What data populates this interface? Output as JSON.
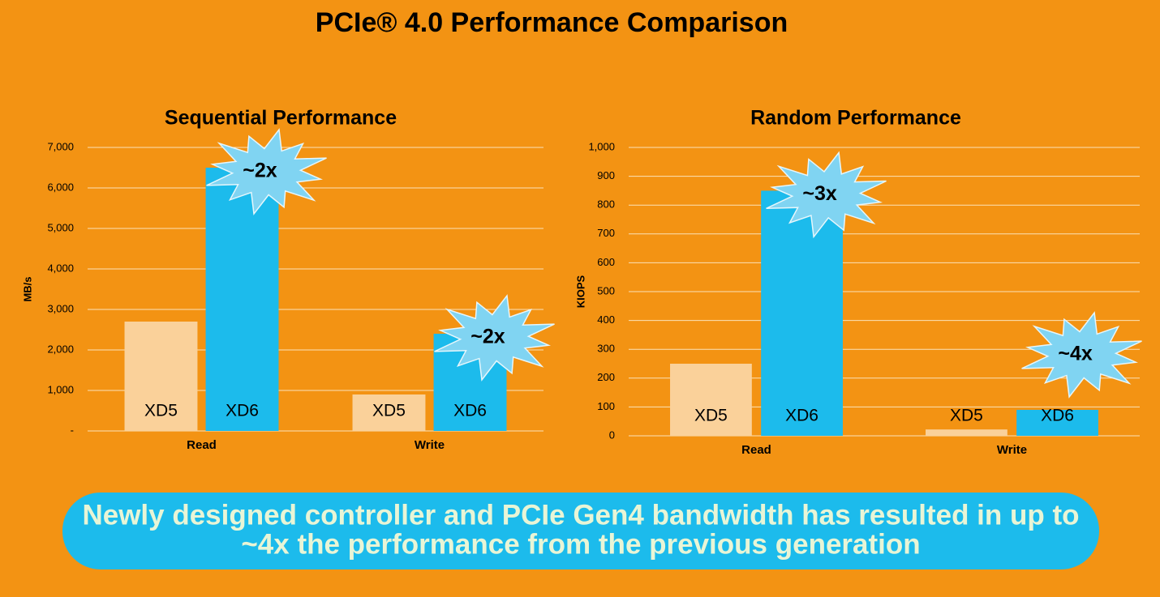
{
  "title": "PCIe® 4.0 Performance Comparison",
  "footer": [
    "Newly designed controller and PCIe Gen4 bandwidth has resulted in up to",
    "~4x the performance from the previous generation"
  ],
  "chart_data": [
    {
      "type": "bar",
      "title": "Sequential Performance",
      "ylabel": "MB/s",
      "categories": [
        "Read",
        "Write"
      ],
      "series": [
        {
          "name": "XD5",
          "color": "#fad19a",
          "values": [
            2700,
            900
          ]
        },
        {
          "name": "XD6",
          "color": "#1cbbec",
          "values": [
            6500,
            2400
          ]
        }
      ],
      "annotations": [
        "~2x",
        "~2x"
      ],
      "ylim": [
        0,
        7000
      ],
      "yticks": [
        {
          "value": 0,
          "label": "-"
        },
        {
          "value": 1000,
          "label": "1,000"
        },
        {
          "value": 2000,
          "label": "2,000"
        },
        {
          "value": 3000,
          "label": "3,000"
        },
        {
          "value": 4000,
          "label": "4,000"
        },
        {
          "value": 5000,
          "label": "5,000"
        },
        {
          "value": 6000,
          "label": "6,000"
        },
        {
          "value": 7000,
          "label": "7,000"
        }
      ],
      "grid": true
    },
    {
      "type": "bar",
      "title": "Random Performance",
      "ylabel": "KIOPS",
      "categories": [
        "Read",
        "Write"
      ],
      "series": [
        {
          "name": "XD5",
          "color": "#fad19a",
          "values": [
            250,
            22
          ]
        },
        {
          "name": "XD6",
          "color": "#1cbbec",
          "values": [
            850,
            90
          ]
        }
      ],
      "annotations": [
        "~3x",
        "~4x"
      ],
      "ylim": [
        0,
        1000
      ],
      "yticks": [
        0,
        100,
        200,
        300,
        400,
        500,
        600,
        700,
        800,
        900,
        {
          "value": 1000,
          "label": "1,000"
        }
      ],
      "grid": true
    }
  ]
}
